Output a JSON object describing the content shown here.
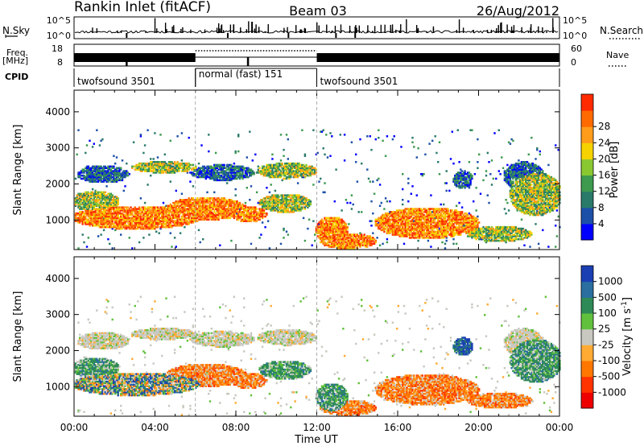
{
  "header": {
    "station": "Rankin Inlet (fitACF)",
    "beam": "Beam 03",
    "date": "26/Aug/2012"
  },
  "chart_data": [
    {
      "type": "line",
      "panel": "noise",
      "left_label": "N.Sky",
      "right_label": "N.Search",
      "left_ticks": [
        "10^5",
        "10^0"
      ],
      "right_ticks": [
        "10^5",
        "10^0"
      ]
    },
    {
      "type": "line",
      "panel": "freq",
      "left_label": "Freq.",
      "left_unit": "[MHz]",
      "left_ticks": [
        "18",
        "8"
      ],
      "right_label": "Nave",
      "right_ticks": [
        "60",
        "0"
      ]
    },
    {
      "type": "table",
      "panel": "cpid",
      "label": "CPID",
      "segments": [
        {
          "start": 0,
          "end": 6,
          "name": "twofsound 3501"
        },
        {
          "start": 6,
          "end": 12,
          "name": "normal (fast) 151"
        },
        {
          "start": 12,
          "end": 24,
          "name": "twofsound 3501"
        }
      ]
    },
    {
      "type": "heatmap",
      "panel": "power",
      "ylabel": "Slant Range [km]",
      "yticks": [
        "1000",
        "2000",
        "3000",
        "4000"
      ],
      "ylim": [
        180,
        4600
      ],
      "colorbar_label": "Power [dB]",
      "colorbar_ticks": [
        "4",
        "8",
        "12",
        "16",
        "20",
        "24",
        "28"
      ],
      "colorbar_colors": [
        "#0000ff",
        "#1c50a8",
        "#2a7a6a",
        "#3d9a4f",
        "#8ac832",
        "#f5d200",
        "#ff9c1a",
        "#ff6a00",
        "#ff2a00"
      ]
    },
    {
      "type": "heatmap",
      "panel": "velocity",
      "ylabel": "Slant Range [km]",
      "yticks": [
        "1000",
        "2000",
        "3000",
        "4000"
      ],
      "ylim": [
        180,
        4600
      ],
      "xlabel": "Time UT",
      "xticks": [
        "00:00",
        "04:00",
        "08:00",
        "12:00",
        "16:00",
        "20:00",
        "00:00"
      ],
      "xlim": [
        0,
        24
      ],
      "colorbar_label": "Velocity [m s",
      "colorbar_unit_sup": "-1",
      "colorbar_unit_close": "]",
      "colorbar_ticks": [
        "1000",
        "500",
        "100",
        "25",
        "-25",
        "-100",
        "-500",
        "-1000"
      ],
      "colorbar_colors": [
        "#1a3fb3",
        "#2a6fa0",
        "#2e8a56",
        "#61c13c",
        "#c8c8c0",
        "#ffaa33",
        "#ff7700",
        "#ff3300",
        "#ee0000"
      ]
    }
  ]
}
